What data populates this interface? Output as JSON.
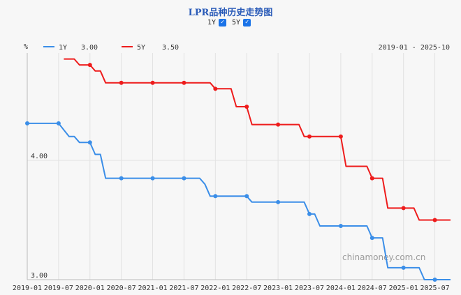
{
  "chart_data": {
    "type": "line",
    "title": "LPR品种历史走势图",
    "ylabel": "%",
    "ylim": [
      3.0,
      4.9
    ],
    "y_ticks": [
      "4.00",
      "3.00"
    ],
    "y_tick_values": [
      4.0,
      3.0
    ],
    "date_range": "2019-01 - 2025-10",
    "xlim": [
      0,
      81
    ],
    "x_ticks": [
      "2019-01",
      "2019-07",
      "2020-01",
      "2020-07",
      "2021-01",
      "2021-07",
      "2022-01",
      "2022-07",
      "2023-01",
      "2023-07",
      "2024-01",
      "2024-07",
      "2025-01",
      "2025-07"
    ],
    "x_tick_values": [
      0,
      6,
      12,
      18,
      24,
      30,
      36,
      42,
      48,
      54,
      60,
      66,
      72,
      78
    ],
    "watermark": "chinamoney.com.cn",
    "series": [
      {
        "name": "1Y",
        "legend_value": "3.00",
        "color": "#3b8ee8",
        "checked": true,
        "points": [
          [
            0,
            4.31
          ],
          [
            6,
            4.31
          ],
          [
            8,
            4.2
          ],
          [
            9,
            4.2
          ],
          [
            10,
            4.15
          ],
          [
            12,
            4.15
          ],
          [
            13,
            4.05
          ],
          [
            14,
            4.05
          ],
          [
            15,
            3.85
          ],
          [
            24,
            3.85
          ],
          [
            33,
            3.85
          ],
          [
            34,
            3.8
          ],
          [
            35,
            3.7
          ],
          [
            42,
            3.7
          ],
          [
            43,
            3.65
          ],
          [
            48,
            3.65
          ],
          [
            53,
            3.65
          ],
          [
            54,
            3.55
          ],
          [
            55,
            3.55
          ],
          [
            56,
            3.45
          ],
          [
            65,
            3.45
          ],
          [
            66,
            3.35
          ],
          [
            68,
            3.35
          ],
          [
            69,
            3.1
          ],
          [
            72,
            3.1
          ],
          [
            75,
            3.1
          ],
          [
            76,
            3.0
          ],
          [
            81,
            3.0
          ]
        ],
        "markers": [
          [
            0,
            4.31
          ],
          [
            6,
            4.31
          ],
          [
            12,
            4.15
          ],
          [
            18,
            3.85
          ],
          [
            24,
            3.85
          ],
          [
            30,
            3.85
          ],
          [
            36,
            3.7
          ],
          [
            42,
            3.7
          ],
          [
            48,
            3.65
          ],
          [
            54,
            3.55
          ],
          [
            60,
            3.45
          ],
          [
            66,
            3.35
          ],
          [
            72,
            3.1
          ],
          [
            78,
            3.0
          ]
        ]
      },
      {
        "name": "5Y",
        "legend_value": "3.50",
        "color": "#ee1c1c",
        "checked": true,
        "points": [
          [
            7,
            4.85
          ],
          [
            9,
            4.85
          ],
          [
            10,
            4.8
          ],
          [
            12,
            4.8
          ],
          [
            13,
            4.75
          ],
          [
            14,
            4.75
          ],
          [
            15,
            4.65
          ],
          [
            35,
            4.65
          ],
          [
            36,
            4.6
          ],
          [
            39,
            4.6
          ],
          [
            40,
            4.45
          ],
          [
            42,
            4.45
          ],
          [
            43,
            4.3
          ],
          [
            52,
            4.3
          ],
          [
            53,
            4.2
          ],
          [
            59,
            4.2
          ],
          [
            60,
            4.2
          ],
          [
            61,
            3.95
          ],
          [
            65,
            3.95
          ],
          [
            66,
            3.85
          ],
          [
            68,
            3.85
          ],
          [
            69,
            3.6
          ],
          [
            72,
            3.6
          ],
          [
            74,
            3.6
          ],
          [
            75,
            3.5
          ],
          [
            81,
            3.5
          ]
        ],
        "markers": [
          [
            12,
            4.8
          ],
          [
            18,
            4.65
          ],
          [
            24,
            4.65
          ],
          [
            30,
            4.65
          ],
          [
            36,
            4.6
          ],
          [
            42,
            4.45
          ],
          [
            48,
            4.3
          ],
          [
            54,
            4.2
          ],
          [
            60,
            4.2
          ],
          [
            66,
            3.85
          ],
          [
            72,
            3.6
          ],
          [
            78,
            3.5
          ]
        ]
      }
    ]
  }
}
